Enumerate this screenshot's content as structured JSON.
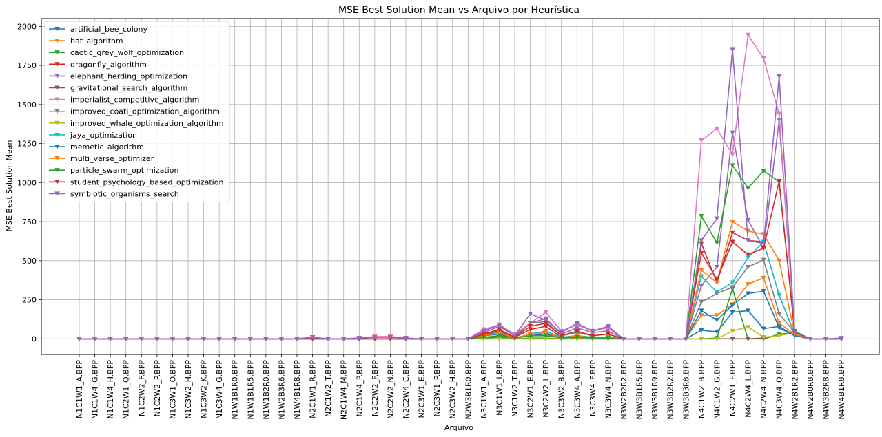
{
  "chart_data": {
    "type": "line",
    "title": "MSE Best Solution Mean vs Arquivo por Heurística",
    "xlabel": "Arquivo",
    "ylabel": "MSE Best Solution Mean",
    "ylim": [
      -100,
      2050
    ],
    "yticks": [
      0,
      250,
      500,
      750,
      1000,
      1250,
      1500,
      1750,
      2000
    ],
    "grid": true,
    "legend_position": "top-left",
    "marker": "triangle-down",
    "categories": [
      "N1C1W1_A.BPP",
      "N1C1W4_G.BPP",
      "N1C1W4_H.BPP",
      "N1C2W1_Q.BPP",
      "N1C2W2_F.BPP",
      "N1C2W2_P.BPP",
      "N1C3W1_O.BPP",
      "N1C3W2_H.BPP",
      "N1C3W2_K.BPP",
      "N1C3W4_G.BPP",
      "N1W1B1R0.BPP",
      "N1W1B1R5.BPP",
      "N1W1B2R0.BPP",
      "N1W2B3R6.BPP",
      "N1W4B1R8.BPP",
      "N2C1W1_R.BPP",
      "N2C1W2_T.BPP",
      "N2C1W4_M.BPP",
      "N2C1W4_P.BPP",
      "N2C2W2_F.BPP",
      "N2C2W2_N.BPP",
      "N2C2W4_C.BPP",
      "N2C3W1_E.BPP",
      "N2C3W1_P.BPP",
      "N2C3W2_H.BPP",
      "N2W3B1R0.BPP",
      "N3C1W1_A.BPP",
      "N3C1W1_I.BPP",
      "N3C1W2_T.BPP",
      "N3C2W1_E.BPP",
      "N3C2W2_L.BPP",
      "N3C3W2_B.BPP",
      "N3C3W4_A.BPP",
      "N3C3W4_F.BPP",
      "N3C3W4_N.BPP",
      "N3W2B2R2.BPP",
      "N3W3B1R5.BPP",
      "N3W3B1R9.BPP",
      "N3W3B2R2.BPP",
      "N3W3B3R8.BPP",
      "N4C1W2_B.BPP",
      "N4C1W2_G.BPP",
      "N4C2W1_F.BPP",
      "N4C2W4_L.BPP",
      "N4C2W4_N.BPP",
      "N4C3W4_Q.BPP",
      "N4W2B1R2.BPP",
      "N4W2B8R8.BPP",
      "N4W3B2R8.BPP",
      "N4W4B1R8.BPP"
    ],
    "series": [
      {
        "name": "artificial_bee_colony",
        "color": "#1f77b4",
        "values": [
          0,
          0,
          0,
          0,
          0,
          0,
          0,
          0,
          0,
          0,
          0,
          0,
          0,
          0,
          0,
          0,
          0,
          0,
          0,
          0,
          0,
          0,
          0,
          0,
          0,
          0,
          25,
          40,
          5,
          30,
          40,
          0,
          10,
          5,
          5,
          0,
          0,
          0,
          0,
          0,
          55,
          45,
          170,
          180,
          65,
          80,
          20,
          0,
          0,
          0
        ]
      },
      {
        "name": "bat_algorithm",
        "color": "#ff7f0e",
        "values": [
          0,
          0,
          0,
          0,
          0,
          0,
          0,
          0,
          0,
          0,
          0,
          0,
          0,
          0,
          0,
          0,
          0,
          0,
          0,
          0,
          0,
          0,
          0,
          0,
          0,
          0,
          20,
          35,
          5,
          20,
          30,
          5,
          10,
          5,
          5,
          0,
          0,
          0,
          0,
          0,
          150,
          150,
          220,
          350,
          390,
          100,
          30,
          0,
          0,
          0
        ]
      },
      {
        "name": "caotic_grey_wolf_optimization",
        "color": "#2ca02c",
        "values": [
          0,
          0,
          0,
          0,
          0,
          0,
          0,
          0,
          0,
          0,
          0,
          0,
          0,
          0,
          0,
          0,
          0,
          0,
          0,
          0,
          0,
          0,
          0,
          0,
          0,
          0,
          5,
          10,
          0,
          5,
          5,
          0,
          5,
          0,
          0,
          0,
          0,
          0,
          0,
          0,
          0,
          5,
          320,
          0,
          0,
          30,
          40,
          0,
          0,
          0
        ]
      },
      {
        "name": "dragonfly_algorithm",
        "color": "#d62728",
        "values": [
          0,
          0,
          0,
          0,
          0,
          0,
          0,
          0,
          0,
          0,
          0,
          0,
          0,
          0,
          0,
          0,
          0,
          0,
          0,
          0,
          0,
          0,
          0,
          0,
          0,
          0,
          30,
          50,
          10,
          60,
          80,
          10,
          20,
          10,
          10,
          0,
          0,
          0,
          0,
          0,
          610,
          360,
          680,
          630,
          620,
          280,
          30,
          0,
          0,
          0
        ]
      },
      {
        "name": "elephant_herding_optimization",
        "color": "#9467bd",
        "values": [
          0,
          0,
          0,
          0,
          0,
          0,
          0,
          0,
          0,
          0,
          0,
          0,
          0,
          0,
          0,
          0,
          0,
          0,
          0,
          0,
          0,
          0,
          0,
          0,
          0,
          0,
          40,
          80,
          20,
          100,
          130,
          30,
          70,
          40,
          50,
          0,
          0,
          0,
          0,
          0,
          340,
          460,
          1320,
          760,
          580,
          1400,
          40,
          0,
          0,
          0
        ]
      },
      {
        "name": "gravitational_search_algorithm",
        "color": "#8c564b",
        "values": [
          0,
          0,
          0,
          0,
          0,
          0,
          0,
          0,
          0,
          0,
          0,
          0,
          0,
          0,
          0,
          0,
          0,
          0,
          0,
          0,
          0,
          0,
          0,
          0,
          0,
          0,
          0,
          0,
          0,
          0,
          0,
          0,
          0,
          0,
          0,
          0,
          0,
          0,
          0,
          0,
          0,
          0,
          0,
          0,
          5,
          20,
          45,
          0,
          0,
          0
        ]
      },
      {
        "name": "imperialist_competitive_algorithm",
        "color": "#e377c2",
        "values": [
          0,
          0,
          0,
          0,
          0,
          0,
          0,
          0,
          0,
          0,
          0,
          0,
          0,
          0,
          0,
          10,
          0,
          0,
          5,
          15,
          15,
          5,
          0,
          0,
          0,
          0,
          60,
          90,
          30,
          100,
          170,
          50,
          90,
          50,
          70,
          0,
          0,
          0,
          0,
          0,
          1270,
          1345,
          1180,
          1945,
          1795,
          1440,
          40,
          0,
          0,
          0
        ]
      },
      {
        "name": "improved_coati_optimization_algorithm",
        "color": "#7f7f7f",
        "values": [
          0,
          0,
          0,
          0,
          0,
          0,
          0,
          0,
          0,
          0,
          0,
          0,
          0,
          0,
          0,
          0,
          0,
          0,
          0,
          0,
          0,
          0,
          0,
          0,
          0,
          0,
          30,
          60,
          10,
          100,
          110,
          20,
          40,
          20,
          30,
          0,
          0,
          0,
          0,
          0,
          235,
          290,
          330,
          460,
          505,
          160,
          40,
          0,
          0,
          0
        ]
      },
      {
        "name": "improved_whale_optimization_algorithm",
        "color": "#bcbd22",
        "values": [
          0,
          0,
          0,
          0,
          0,
          0,
          0,
          0,
          0,
          0,
          0,
          0,
          0,
          0,
          0,
          0,
          0,
          0,
          0,
          0,
          0,
          0,
          0,
          0,
          0,
          0,
          0,
          0,
          0,
          0,
          0,
          0,
          0,
          0,
          0,
          0,
          0,
          0,
          0,
          0,
          0,
          0,
          50,
          75,
          10,
          20,
          40,
          0,
          0,
          0
        ]
      },
      {
        "name": "jaya_optimization",
        "color": "#17becf",
        "values": [
          0,
          0,
          0,
          0,
          0,
          0,
          0,
          0,
          0,
          0,
          0,
          0,
          0,
          0,
          0,
          0,
          0,
          0,
          0,
          0,
          0,
          0,
          0,
          0,
          0,
          0,
          20,
          30,
          5,
          30,
          50,
          10,
          20,
          10,
          10,
          0,
          0,
          0,
          0,
          0,
          400,
          300,
          360,
          520,
          620,
          280,
          30,
          0,
          0,
          0
        ]
      },
      {
        "name": "memetic_algorithm",
        "color": "#1f77b4",
        "values": [
          0,
          0,
          0,
          0,
          0,
          0,
          0,
          0,
          0,
          0,
          0,
          0,
          0,
          0,
          0,
          0,
          0,
          0,
          0,
          0,
          0,
          0,
          0,
          0,
          0,
          0,
          20,
          30,
          5,
          20,
          30,
          5,
          10,
          5,
          5,
          0,
          0,
          0,
          0,
          0,
          180,
          120,
          215,
          290,
          305,
          70,
          20,
          0,
          0,
          0
        ]
      },
      {
        "name": "multi_verse_optimizer",
        "color": "#ff7f0e",
        "values": [
          0,
          0,
          0,
          0,
          0,
          0,
          0,
          0,
          0,
          0,
          0,
          0,
          0,
          0,
          0,
          0,
          0,
          0,
          0,
          0,
          0,
          0,
          0,
          0,
          0,
          0,
          20,
          40,
          5,
          30,
          40,
          5,
          20,
          5,
          10,
          0,
          0,
          0,
          0,
          0,
          440,
          360,
          750,
          690,
          670,
          500,
          30,
          0,
          0,
          0
        ]
      },
      {
        "name": "particle_swarm_optimization",
        "color": "#2ca02c",
        "values": [
          0,
          0,
          0,
          0,
          0,
          0,
          0,
          0,
          0,
          0,
          0,
          0,
          0,
          0,
          0,
          0,
          0,
          0,
          0,
          0,
          0,
          0,
          0,
          0,
          0,
          0,
          10,
          20,
          5,
          20,
          20,
          5,
          10,
          5,
          5,
          0,
          0,
          0,
          0,
          0,
          785,
          615,
          1110,
          965,
          1075,
          1005,
          50,
          0,
          0,
          0
        ]
      },
      {
        "name": "student_psychology_based_optimization",
        "color": "#d62728",
        "values": [
          0,
          0,
          0,
          0,
          0,
          0,
          0,
          0,
          0,
          0,
          0,
          0,
          0,
          0,
          0,
          0,
          0,
          0,
          0,
          0,
          0,
          0,
          0,
          0,
          0,
          0,
          30,
          60,
          10,
          80,
          100,
          20,
          50,
          20,
          30,
          0,
          0,
          0,
          0,
          0,
          550,
          380,
          620,
          540,
          580,
          1010,
          40,
          0,
          0,
          0
        ]
      },
      {
        "name": "symbiotic_organisms_search",
        "color": "#9467bd",
        "values": [
          0,
          0,
          0,
          0,
          0,
          0,
          0,
          0,
          0,
          0,
          0,
          0,
          0,
          0,
          0,
          10,
          0,
          0,
          5,
          10,
          10,
          5,
          0,
          0,
          0,
          0,
          50,
          90,
          20,
          160,
          120,
          40,
          100,
          50,
          80,
          0,
          0,
          0,
          0,
          0,
          630,
          770,
          1850,
          630,
          610,
          1680,
          40,
          0,
          0,
          5
        ]
      }
    ]
  }
}
